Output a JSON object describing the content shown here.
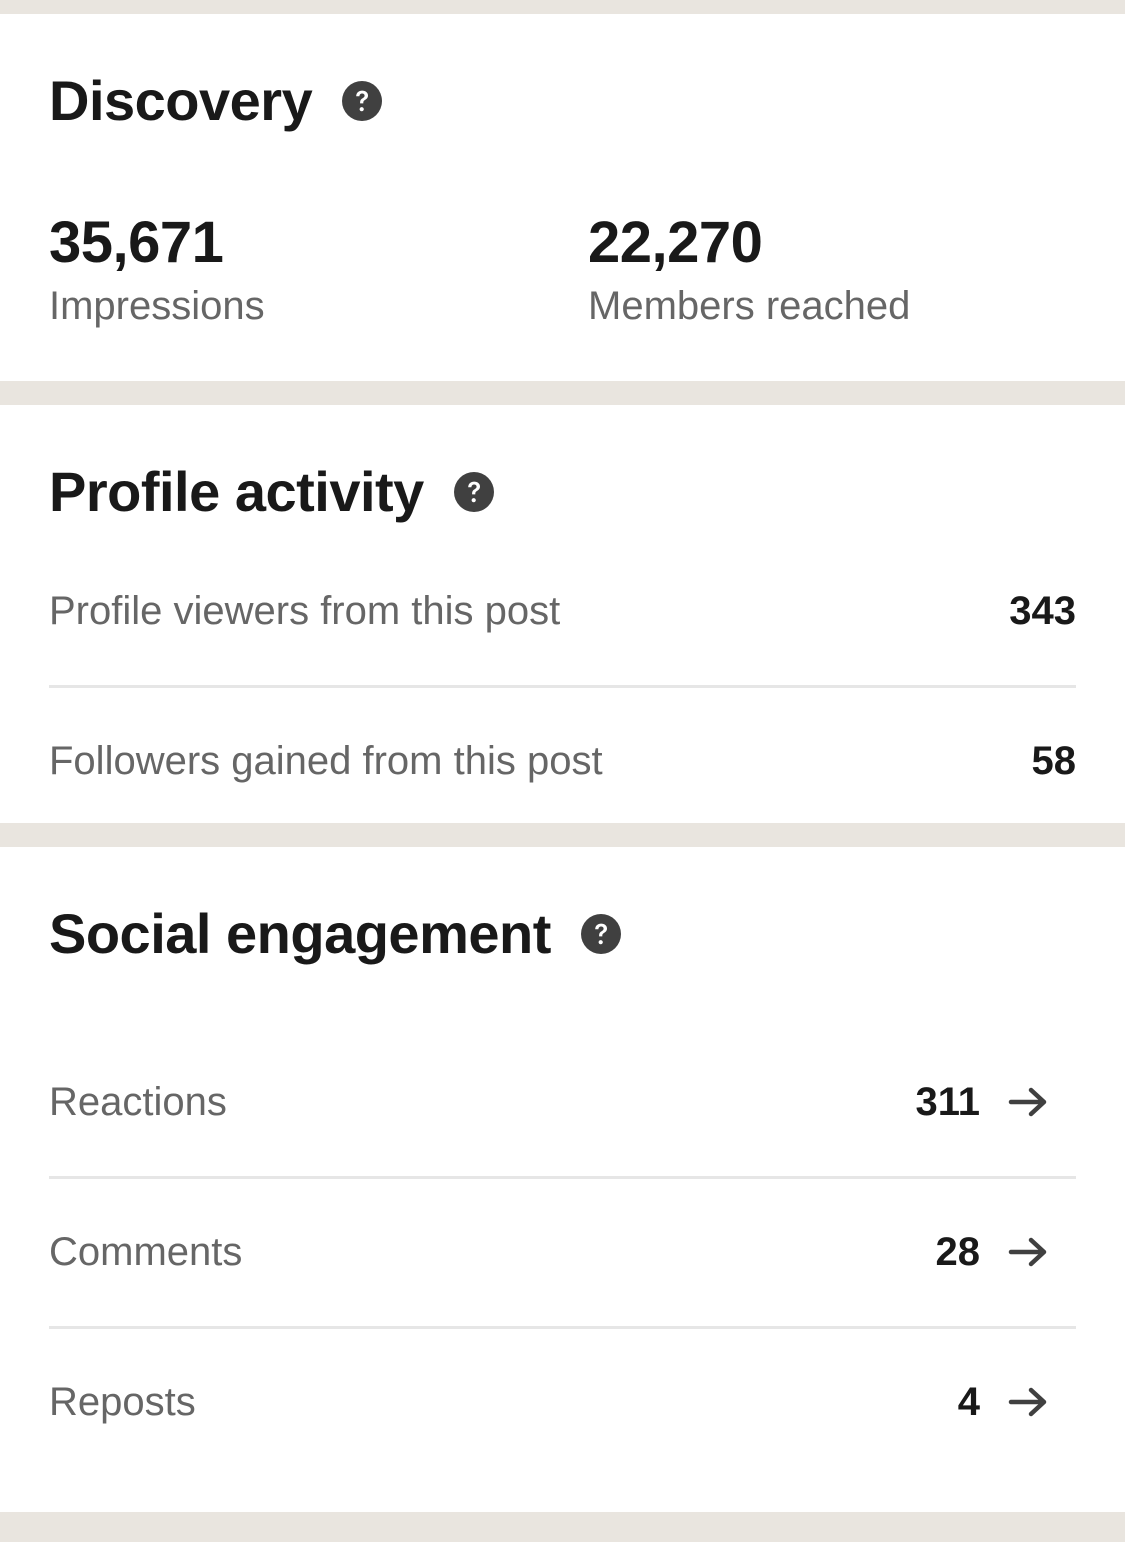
{
  "discovery": {
    "title": "Discovery",
    "help_icon": "question-circle-icon",
    "impressions": {
      "value": "35,671",
      "label": "Impressions"
    },
    "members_reached": {
      "value": "22,270",
      "label": "Members reached"
    }
  },
  "profile_activity": {
    "title": "Profile activity",
    "help_icon": "question-circle-icon",
    "rows": [
      {
        "label": "Profile viewers from this post",
        "value": "343"
      },
      {
        "label": "Followers gained from this post",
        "value": "58"
      }
    ]
  },
  "social_engagement": {
    "title": "Social engagement",
    "help_icon": "question-circle-icon",
    "row_icon": "arrow-right-icon",
    "rows": [
      {
        "label": "Reactions",
        "value": "311"
      },
      {
        "label": "Comments",
        "value": "28"
      },
      {
        "label": "Reposts",
        "value": "4"
      }
    ]
  },
  "colors": {
    "page_background": "#e9e5df",
    "card_background": "#ffffff",
    "heading_text": "#191919",
    "secondary_text": "#666666",
    "divider": "#e6e6e6",
    "icon": "#404040"
  }
}
